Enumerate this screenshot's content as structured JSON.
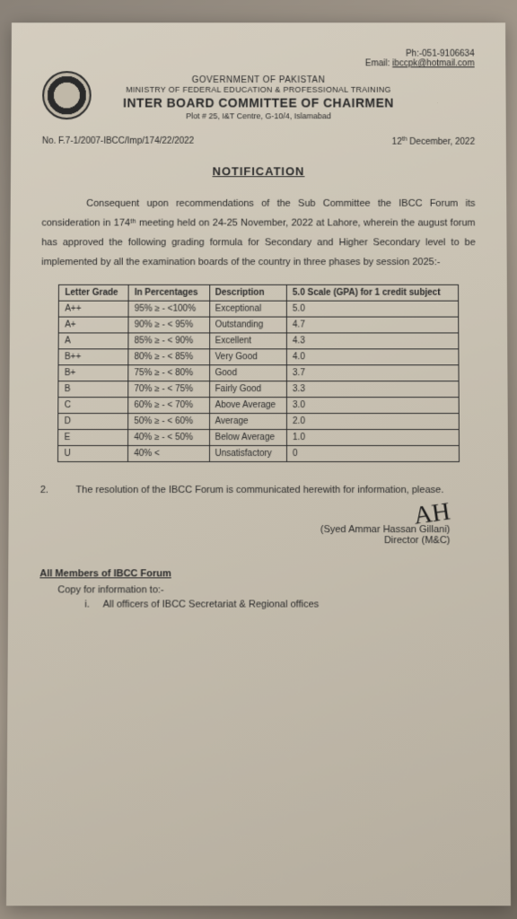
{
  "contact": {
    "phone": "Ph:-051-9106634",
    "email_label": "Email:",
    "email": "ibccpk@hotmail.com"
  },
  "org": {
    "line1": "GOVERNMENT OF PAKISTAN",
    "line2": "MINISTRY OF FEDERAL EDUCATION & PROFESSIONAL TRAINING",
    "main": "INTER BOARD COMMITTEE OF CHAIRMEN",
    "addr": "Plot # 25, I&T Centre, G-10/4, Islamabad"
  },
  "ref": {
    "no": "No. F.7-1/2007-IBCC/Imp/174/22/2022",
    "date_pre": "12",
    "date_sup": "th",
    "date_post": " December, 2022"
  },
  "title": "NOTIFICATION",
  "body": "Consequent upon recommendations of the Sub Committee the IBCC Forum its consideration in 174ᵗʰ meeting held on 24-25 November, 2022 at Lahore, wherein the august forum has approved the following grading formula for Secondary and Higher Secondary level to be implemented by all the examination boards of the country in three phases by session 2025:-",
  "table": {
    "headers": [
      "Letter Grade",
      "In Percentages",
      "Description",
      "5.0 Scale (GPA) for 1 credit subject"
    ],
    "rows": [
      [
        "A++",
        "95% ≥ - <100%",
        "Exceptional",
        "5.0"
      ],
      [
        "A+",
        "90% ≥ - < 95%",
        "Outstanding",
        "4.7"
      ],
      [
        "A",
        "85% ≥ - < 90%",
        "Excellent",
        "4.3"
      ],
      [
        "B++",
        "80% ≥ - < 85%",
        "Very Good",
        "4.0"
      ],
      [
        "B+",
        "75% ≥ - < 80%",
        "Good",
        "3.7"
      ],
      [
        "B",
        "70% ≥ - < 75%",
        "Fairly Good",
        "3.3"
      ],
      [
        "C",
        "60% ≥ - < 70%",
        "Above Average",
        "3.0"
      ],
      [
        "D",
        "50% ≥ - < 60%",
        "Average",
        "2.0"
      ],
      [
        "E",
        "40% ≥ - < 50%",
        "Below Average",
        "1.0"
      ],
      [
        "U",
        "40% <",
        "Unsatisfactory",
        "0"
      ]
    ]
  },
  "para2": {
    "num": "2.",
    "text": "The resolution of the IBCC Forum is communicated herewith for information, please."
  },
  "signature": {
    "name": "(Syed Ammar Hassan Gillani)",
    "title": "Director (M&C)"
  },
  "cc": {
    "heading": "All Members of IBCC Forum",
    "sub": "Copy for information to:-",
    "item_num": "i.",
    "item_text": "All officers of IBCC Secretariat & Regional offices"
  }
}
